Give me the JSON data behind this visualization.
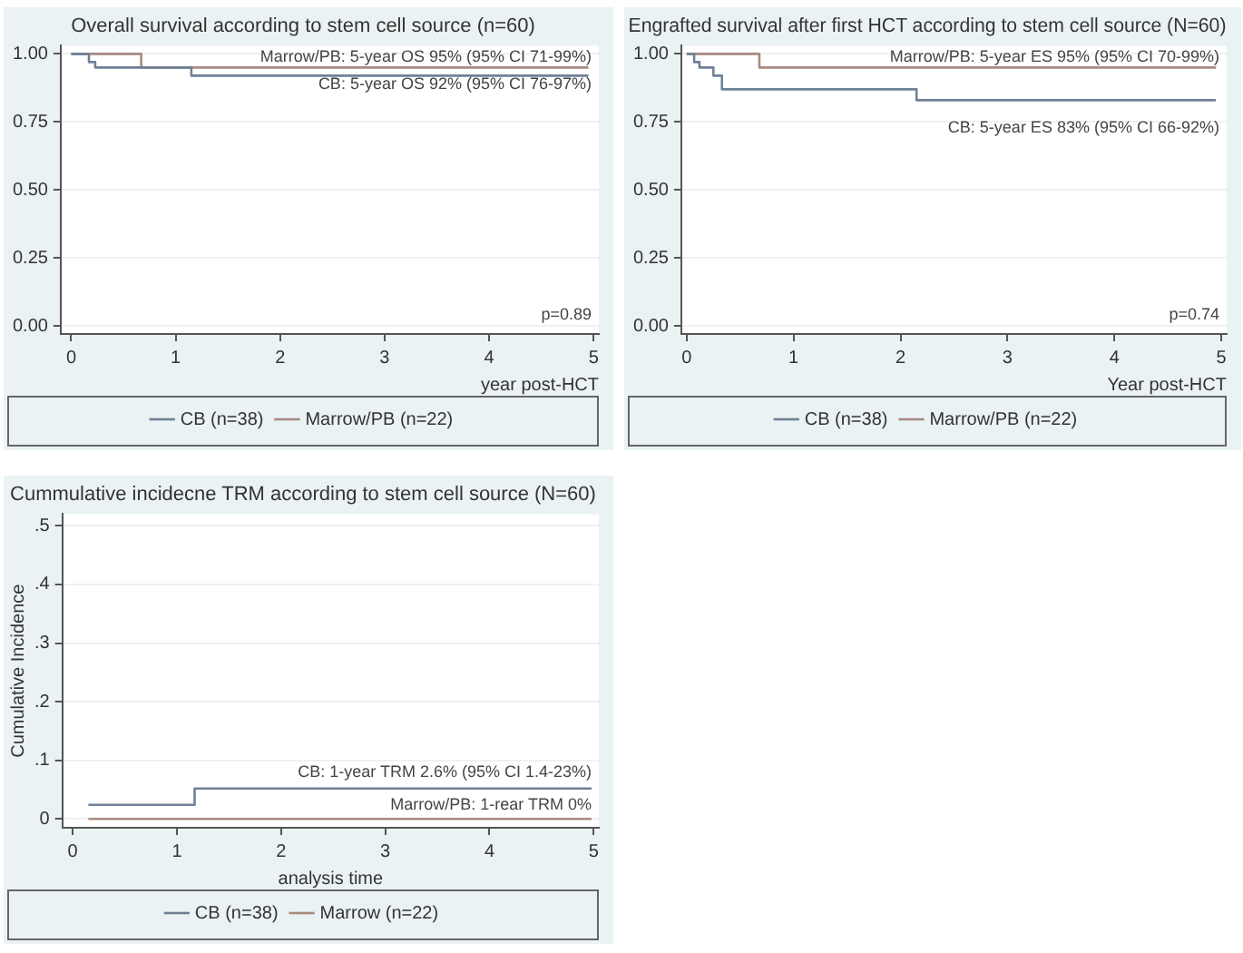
{
  "chart_data": [
    {
      "type": "step",
      "title": "Overall survival according to stem cell source (n=60)",
      "xlabel": "year post-HCT",
      "xlim": [
        -0.1,
        5.05
      ],
      "xticks": [
        0,
        1,
        2,
        3,
        4,
        5
      ],
      "ylim": [
        -0.03,
        1.03
      ],
      "yticks": [
        {
          "value": 0,
          "label": "0.00"
        },
        {
          "value": 0.25,
          "label": "0.25"
        },
        {
          "value": 0.5,
          "label": "0.50"
        },
        {
          "value": 0.75,
          "label": "0.75"
        },
        {
          "value": 1,
          "label": "1.00"
        }
      ],
      "grid": "y",
      "legend": "bottom",
      "series": [
        {
          "name": "CB (n=38)",
          "color": "#6f8196",
          "x": [
            0,
            0.17,
            0.23,
            1.15,
            4.95
          ],
          "values": [
            1,
            0.97,
            0.95,
            0.92,
            0.92
          ]
        },
        {
          "name": "Marrow/PB (n=22)",
          "color": "#a88a80",
          "x": [
            0,
            0.67,
            4.95
          ],
          "values": [
            1,
            0.95,
            0.95
          ]
        }
      ],
      "annotations": [
        "Marrow/PB: 5-year OS 95% (95% CI 71-99%)",
        "CB: 5-year OS 92% (95% CI 76-97%)",
        "p=0.89"
      ]
    },
    {
      "type": "step",
      "title": "Engrafted survival after first HCT according to stem cell source (N=60)",
      "xlabel": "Year post-HCT",
      "xlim": [
        -0.05,
        5.05
      ],
      "xticks": [
        0,
        1,
        2,
        3,
        4,
        5
      ],
      "ylim": [
        -0.03,
        1.03
      ],
      "yticks": [
        {
          "value": 0,
          "label": "0.00"
        },
        {
          "value": 0.25,
          "label": "0.25"
        },
        {
          "value": 0.5,
          "label": "0.50"
        },
        {
          "value": 0.75,
          "label": "0.75"
        },
        {
          "value": 1,
          "label": "1.00"
        }
      ],
      "grid": "y",
      "legend": "bottom",
      "series": [
        {
          "name": "CB (n=38)",
          "color": "#6f8196",
          "x": [
            0,
            0.07,
            0.12,
            0.25,
            0.33,
            2.15,
            4.95
          ],
          "values": [
            1,
            0.97,
            0.95,
            0.92,
            0.87,
            0.83,
            0.83
          ]
        },
        {
          "name": "Marrow/PB (n=22)",
          "color": "#a88a80",
          "x": [
            0,
            0.68,
            4.95
          ],
          "values": [
            1,
            0.95,
            0.95
          ]
        }
      ],
      "annotations": [
        "Marrow/PB: 5-year ES 95% (95% CI 70-99%)",
        "CB: 5-year ES 83% (95% CI 66-92%)",
        "p=0.74"
      ]
    },
    {
      "type": "step",
      "title": "Cummulative incidecne TRM according to stem cell source (N=60)",
      "xlabel": "analysis time",
      "ylabel": "Cumulative Incidence",
      "xlim": [
        -0.1,
        5.05
      ],
      "xticks": [
        0,
        1,
        2,
        3,
        4,
        5
      ],
      "ylim": [
        -0.015,
        0.52
      ],
      "yticks": [
        0,
        {
          "value": 0.1,
          "label": ".1"
        },
        {
          "value": 0.2,
          "label": ".2"
        },
        {
          "value": 0.3,
          "label": ".3"
        },
        {
          "value": 0.4,
          "label": ".4"
        },
        {
          "value": 0.5,
          "label": ".5"
        }
      ],
      "grid": "y",
      "legend": "bottom",
      "series": [
        {
          "name": "CB (n=38)",
          "color": "#6f8196",
          "x": [
            0.15,
            1.17,
            4.98
          ],
          "values": [
            0.024,
            0.052,
            0.052
          ]
        },
        {
          "name": "Marrow (n=22)",
          "color": "#a88a80",
          "x": [
            0.15,
            4.98
          ],
          "values": [
            0,
            0
          ]
        }
      ],
      "annotations": [
        "CB: 1-year TRM 2.6% (95% CI 1.4-23%)",
        "Marrow/PB: 1-rear TRM 0%"
      ]
    }
  ]
}
